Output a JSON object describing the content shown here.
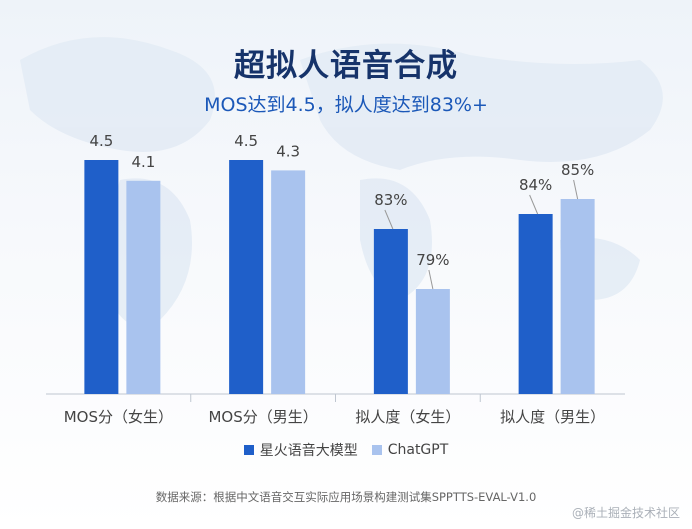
{
  "title": "超拟人语音合成",
  "subtitle": "MOS达到4.5，拟人度达到83%+",
  "colors": {
    "series1": "#1f5fc9",
    "series2": "#a9c3ee",
    "axis": "#bfc6d0",
    "label": "#444444"
  },
  "chart_data": {
    "type": "bar",
    "categories": [
      "MOS分（女生）",
      "MOS分（男生）",
      "拟人度（女生）",
      "拟人度（男生）"
    ],
    "series": [
      {
        "name": "星火语音大模型",
        "values": [
          4.5,
          4.5,
          0.83,
          0.84
        ],
        "labels": [
          "4.5",
          "4.5",
          "83%",
          "84%"
        ]
      },
      {
        "name": "ChatGPT",
        "values": [
          4.1,
          4.3,
          0.79,
          0.85
        ],
        "labels": [
          "4.1",
          "4.3",
          "79%",
          "85%"
        ]
      }
    ],
    "note": "MOS groups use a 0-5 scale; 拟人度 groups use a percentage scale",
    "legend_position": "bottom",
    "grid": false
  },
  "legend": [
    {
      "label": "星火语音大模型",
      "color": "#1f5fc9"
    },
    {
      "label": "ChatGPT",
      "color": "#a9c3ee"
    }
  ],
  "source": "数据来源：根据中文语音交互实际应用场景构建测试集SPPTTS-EVAL-V1.0",
  "watermark": "@稀土掘金技术社区"
}
